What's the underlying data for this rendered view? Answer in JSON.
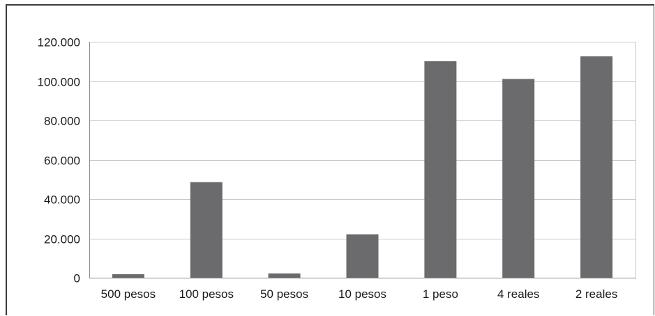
{
  "chart_data": {
    "type": "bar",
    "title": "",
    "xlabel": "",
    "ylabel": "",
    "categories": [
      "500 pesos",
      "100 pesos",
      "50 pesos",
      "10 pesos",
      "1 peso",
      "4 reales",
      "2 reales"
    ],
    "values": [
      1800,
      48600,
      2200,
      22100,
      110100,
      101100,
      112600
    ],
    "ylim": [
      0,
      120000
    ],
    "yticks": [
      0,
      20000,
      40000,
      60000,
      80000,
      100000,
      120000
    ],
    "ytick_labels": [
      "0",
      "20.000",
      "40.000",
      "60.000",
      "80.000",
      "100.000",
      "120.000"
    ],
    "grid": true,
    "legend": "none",
    "colors": {
      "bar": "#6b6b6e",
      "grid": "#c8c8c8",
      "axis": "#8a8a8a",
      "text": "#1a1a1a",
      "frame": "#3a3a3a"
    }
  }
}
